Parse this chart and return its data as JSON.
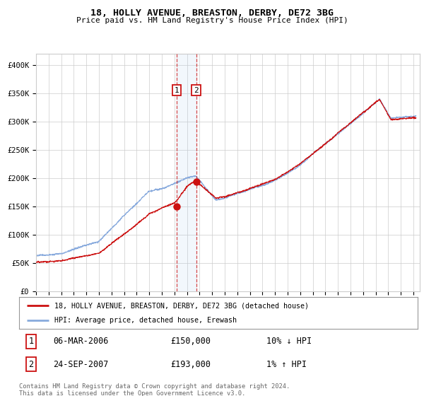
{
  "title": "18, HOLLY AVENUE, BREASTON, DERBY, DE72 3BG",
  "subtitle": "Price paid vs. HM Land Registry's House Price Index (HPI)",
  "hpi_color": "#88aadd",
  "property_color": "#cc1111",
  "background_color": "#ffffff",
  "grid_color": "#cccccc",
  "sale1_date": 2006.18,
  "sale1_price": 150000,
  "sale2_date": 2007.73,
  "sale2_price": 193000,
  "ylim": [
    0,
    420000
  ],
  "yticks": [
    0,
    50000,
    100000,
    150000,
    200000,
    250000,
    300000,
    350000,
    400000
  ],
  "ytick_labels": [
    "£0",
    "£50K",
    "£100K",
    "£150K",
    "£200K",
    "£250K",
    "£300K",
    "£350K",
    "£400K"
  ],
  "legend_line1": "18, HOLLY AVENUE, BREASTON, DERBY, DE72 3BG (detached house)",
  "legend_line2": "HPI: Average price, detached house, Erewash",
  "table_row1": [
    "1",
    "06-MAR-2006",
    "£150,000",
    "10% ↓ HPI"
  ],
  "table_row2": [
    "2",
    "24-SEP-2007",
    "£193,000",
    "1% ↑ HPI"
  ],
  "footnote": "Contains HM Land Registry data © Crown copyright and database right 2024.\nThis data is licensed under the Open Government Licence v3.0.",
  "xlim_start": 1995.0,
  "xlim_end": 2025.5
}
